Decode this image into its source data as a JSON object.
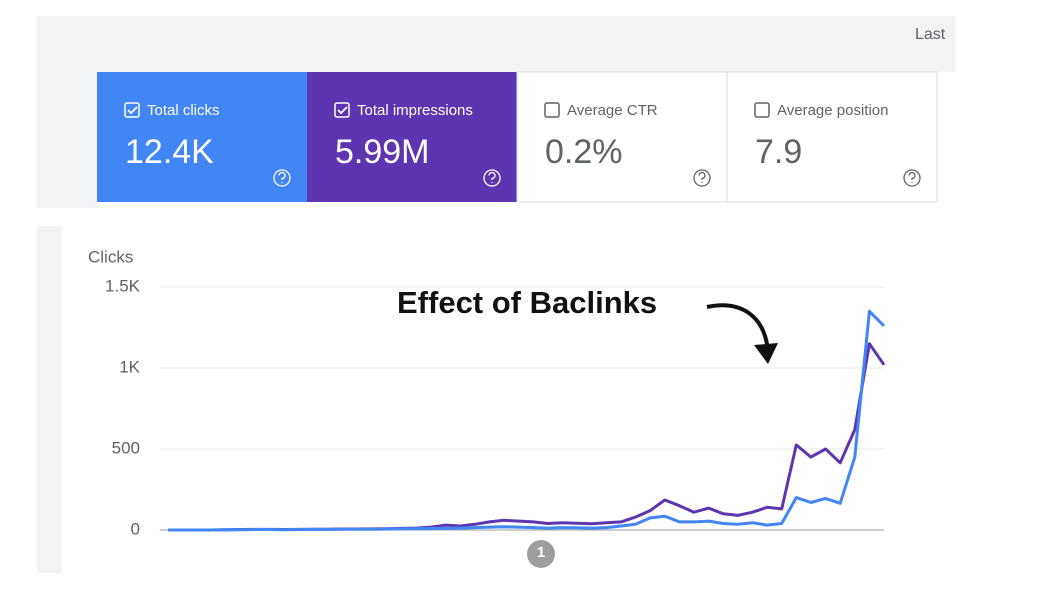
{
  "header": {
    "date_range": "Last"
  },
  "metrics": [
    {
      "label": "Total clicks",
      "value": "12.4K",
      "checked": true,
      "color": "#4285f4"
    },
    {
      "label": "Total impressions",
      "value": "5.99M",
      "checked": true,
      "color": "#5e35b1"
    },
    {
      "label": "Average CTR",
      "value": "0.2%",
      "checked": false,
      "color": "#ffffff"
    },
    {
      "label": "Average position",
      "value": "7.9",
      "checked": false,
      "color": "#ffffff"
    }
  ],
  "chart_data": {
    "type": "line",
    "y_label": "Clicks",
    "annotation": "Effect of Baclinks",
    "marker": "1",
    "ylim": [
      0,
      1500
    ],
    "yticks": [
      0,
      500,
      {
        "value": 1000,
        "label": "1K"
      },
      {
        "value": 1500,
        "label": "1.5K"
      }
    ],
    "grid": true,
    "series": [
      {
        "color": "#5e35b1",
        "values": [
          0,
          0,
          0,
          0,
          2,
          3,
          4,
          4,
          3,
          4,
          5,
          5,
          6,
          6,
          7,
          8,
          10,
          12,
          18,
          30,
          25,
          35,
          50,
          60,
          55,
          50,
          40,
          45,
          42,
          38,
          45,
          50,
          80,
          120,
          185,
          150,
          110,
          135,
          100,
          90,
          110,
          140,
          130,
          525,
          450,
          500,
          415,
          620,
          1150,
          1020
        ]
      },
      {
        "color": "#4285f4",
        "values": [
          0,
          0,
          0,
          0,
          1,
          2,
          3,
          3,
          2,
          3,
          4,
          4,
          5,
          5,
          5,
          6,
          7,
          8,
          9,
          10,
          12,
          15,
          18,
          20,
          18,
          15,
          12,
          15,
          14,
          12,
          15,
          25,
          35,
          75,
          85,
          50,
          50,
          55,
          40,
          35,
          45,
          30,
          40,
          200,
          170,
          195,
          165,
          450,
          1350,
          1260
        ]
      }
    ]
  }
}
